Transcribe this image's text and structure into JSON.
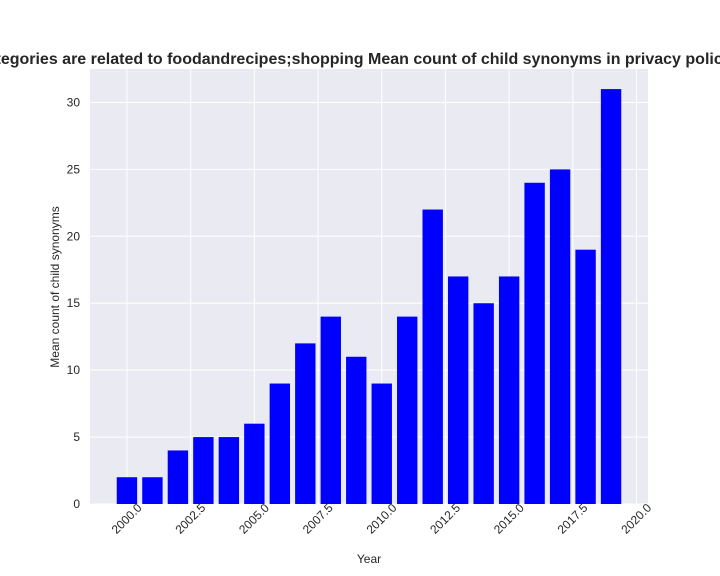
{
  "chart_data": {
    "type": "bar",
    "title": "Categories are related to foodandrecipes;shopping Mean count of child synonyms in privacy policies",
    "xlabel": "Year",
    "ylabel": "Mean count of child synonyms",
    "x": [
      2000,
      2001,
      2002,
      2003,
      2004,
      2005,
      2006,
      2007,
      2008,
      2009,
      2010,
      2011,
      2012,
      2013,
      2014,
      2015,
      2016,
      2017,
      2018,
      2019
    ],
    "values": [
      2,
      2,
      4,
      5,
      5,
      6,
      9,
      12,
      14,
      11,
      9,
      14,
      22,
      17,
      15,
      17,
      24,
      25,
      19,
      31
    ],
    "xlim": [
      1998.55,
      2020.45
    ],
    "ylim": [
      0,
      32.5
    ],
    "xticks": [
      "2000.0",
      "2002.5",
      "2005.0",
      "2007.5",
      "2010.0",
      "2012.5",
      "2015.0",
      "2017.5",
      "2020.0"
    ],
    "xtick_values": [
      2000,
      2002.5,
      2005,
      2007.5,
      2010,
      2012.5,
      2015,
      2017.5,
      2020
    ],
    "yticks": [
      "0",
      "5",
      "10",
      "15",
      "20",
      "25",
      "30"
    ],
    "ytick_values": [
      0,
      5,
      10,
      15,
      20,
      25,
      30
    ],
    "bar_color": "#0000ff",
    "plot_background": "#eaeaf2",
    "grid_color": "#ffffff",
    "grid": true
  }
}
